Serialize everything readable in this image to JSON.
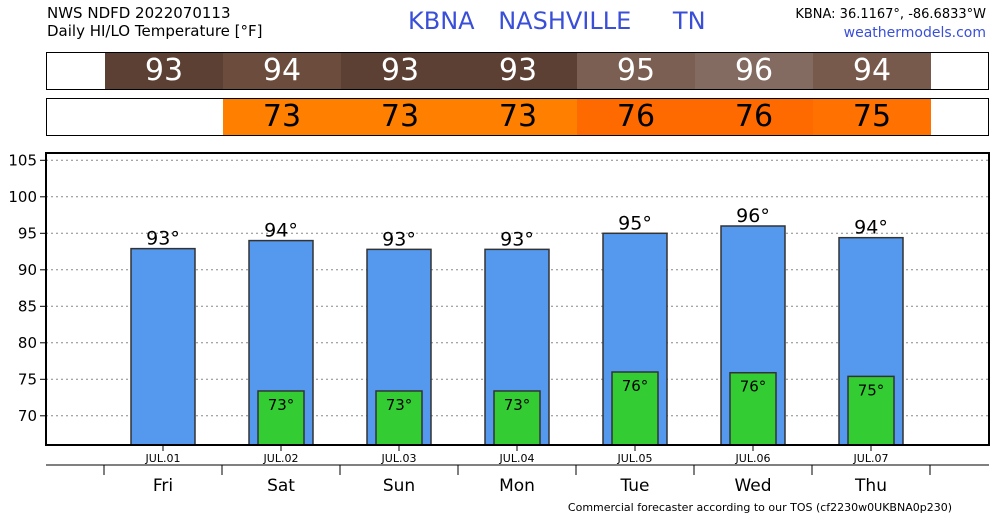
{
  "header": {
    "line1": "NWS NDFD 2022070113",
    "line2": "Daily HI/LO Temperature [°F]",
    "station": "KBNA",
    "city": "NASHVILLE",
    "state": "TN",
    "coords": "KBNA: 36.1167°, -86.6833°W",
    "site": "weathermodels.com"
  },
  "colors": {
    "hi_strip": [
      "#5c4033",
      "#6b4c3d",
      "#5c4033",
      "#5c4033",
      "#7a5f52",
      "#836b61",
      "#775a4c"
    ],
    "lo_strip": [
      "#ff8000",
      "#ff8000",
      "#ff8000",
      "#ff6a00",
      "#ff6a00",
      "#ff7100"
    ],
    "hi_bar": "#5599ee",
    "lo_bar": "#33cc33"
  },
  "chart_data": {
    "type": "bar",
    "categories": [
      "Fri",
      "Sat",
      "Sun",
      "Mon",
      "Tue",
      "Wed",
      "Thu"
    ],
    "dates": [
      "JUL.01",
      "JUL.02",
      "JUL.03",
      "JUL.04",
      "JUL.05",
      "JUL.06",
      "JUL.07"
    ],
    "series": [
      {
        "values": [
          93,
          94,
          93,
          93,
          95,
          96,
          94
        ]
      },
      {
        "values": [
          null,
          73,
          73,
          73,
          76,
          76,
          75
        ]
      }
    ],
    "bar_tops": {
      "hi": [
        92.9,
        94.0,
        92.8,
        92.8,
        95.0,
        96.0,
        94.4
      ],
      "lo": [
        null,
        73.4,
        73.4,
        73.4,
        76.0,
        75.9,
        75.4
      ]
    },
    "hi_labels": [
      "93°",
      "94°",
      "93°",
      "93°",
      "95°",
      "96°",
      "94°"
    ],
    "lo_labels": [
      null,
      "73°",
      "73°",
      "73°",
      "76°",
      "76°",
      "75°"
    ],
    "ylim": [
      66,
      106
    ],
    "yticks": [
      70,
      75,
      80,
      85,
      90,
      95,
      100,
      105
    ],
    "grid": true
  },
  "footer": "Commercial forecaster according to our TOS (cf2230w0UKBNA0p230)"
}
